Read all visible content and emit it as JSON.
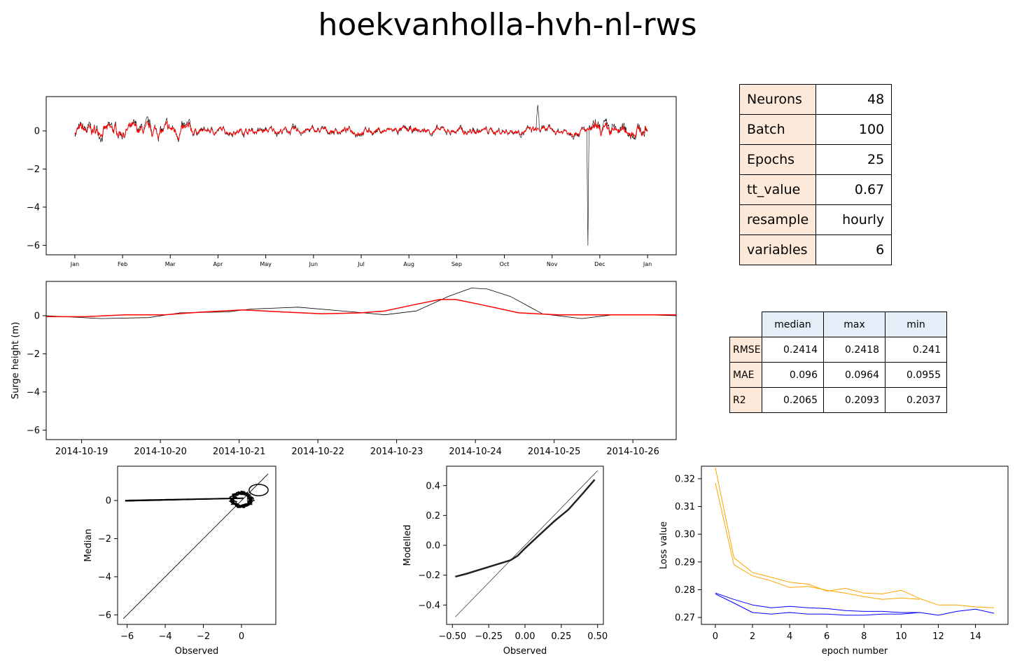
{
  "title": "hoekvanholla-hvh-nl-rws",
  "params_table": [
    {
      "key": "Neurons",
      "value": "48"
    },
    {
      "key": "Batch",
      "value": "100"
    },
    {
      "key": "Epochs",
      "value": "25"
    },
    {
      "key": "tt_value",
      "value": "0.67"
    },
    {
      "key": "resample",
      "value": "hourly"
    },
    {
      "key": "variables",
      "value": "6"
    }
  ],
  "metrics_table": {
    "columns": [
      "median",
      "max",
      "min"
    ],
    "rows": [
      {
        "name": "RMSE",
        "values": [
          "0.2414",
          "0.2418",
          "0.241"
        ]
      },
      {
        "name": "MAE",
        "values": [
          "0.096",
          "0.0964",
          "0.0955"
        ]
      },
      {
        "name": "R2",
        "values": [
          "0.2065",
          "0.2093",
          "0.2037"
        ]
      }
    ]
  },
  "chart_data": [
    {
      "id": "annual",
      "type": "line",
      "xlabel": "",
      "ylabel": "",
      "ylim": [
        -6.5,
        1.8
      ],
      "yticks": [
        0,
        -2,
        -4,
        -6
      ],
      "xticks": [
        "Jan",
        "Feb",
        "Mar",
        "Apr",
        "May",
        "Jun",
        "Jul",
        "Aug",
        "Sep",
        "Oct",
        "Nov",
        "Dec",
        "Jan"
      ],
      "colors": {
        "observed": "#000000",
        "modelled": "#ff0000"
      },
      "series": [
        {
          "values_note": "",
          "x_range_months": [
            0,
            12
          ],
          "typical_range": [
            -0.5,
            0.6
          ],
          "peaks": [
            {
              "month": 9.7,
              "value": 1.4
            },
            {
              "month": 10.75,
              "value": -6.2
            }
          ]
        },
        {
          "x_range_months": [
            0,
            12
          ],
          "typical_range": [
            -0.7,
            0.6
          ]
        }
      ]
    },
    {
      "id": "zoom",
      "type": "line",
      "xlabel": "",
      "ylabel": "Surge height (m)",
      "ylim": [
        -6.5,
        1.8
      ],
      "yticks": [
        0,
        -2,
        -4,
        -6
      ],
      "xticks": [
        "2014-10-19",
        "2014-10-20",
        "2014-10-21",
        "2014-10-22",
        "2014-10-23",
        "2014-10-24",
        "2014-10-25",
        "2014-10-26"
      ],
      "series": [
        {
          "x": [
            0,
            0.7,
            1.3,
            1.7,
            2.3,
            2.6,
            3.2,
            3.9,
            4.3,
            4.7,
            5.1,
            5.4,
            5.6,
            5.9,
            6.3,
            6.8,
            7.2,
            7.6,
            8.0,
            8.3,
            8.6
          ],
          "y": [
            0.0,
            -0.15,
            -0.1,
            0.15,
            0.2,
            0.35,
            0.45,
            0.2,
            0.05,
            0.25,
            1.0,
            1.45,
            1.4,
            1.0,
            0.1,
            -0.15,
            0.05,
            0.05,
            0.0,
            0.1,
            -0.05
          ]
        },
        {
          "x": [
            0,
            0.5,
            1.0,
            1.5,
            2.0,
            2.5,
            3.0,
            3.5,
            4.0,
            4.3,
            4.7,
            5.0,
            5.2,
            5.5,
            6.0,
            6.5,
            7.0,
            7.5,
            8.0,
            8.5,
            8.6
          ],
          "y": [
            -0.05,
            -0.05,
            0.05,
            0.05,
            0.2,
            0.3,
            0.2,
            0.1,
            0.15,
            0.25,
            0.6,
            0.85,
            0.85,
            0.6,
            0.15,
            0.05,
            0.05,
            0.05,
            0.05,
            0.05,
            0.0
          ]
        }
      ]
    },
    {
      "id": "scatter-median",
      "type": "scatter",
      "xlabel": "Observed",
      "ylabel": "Median",
      "xlim": [
        -6.5,
        1.8
      ],
      "ylim": [
        -6.5,
        1.8
      ],
      "xticks": [
        -6,
        -4,
        -2,
        0
      ],
      "yticks": [
        0,
        -2,
        -4,
        -6
      ],
      "identity_line": [
        [
          -6.2,
          -6.2
        ],
        [
          1.4,
          1.4
        ]
      ]
    },
    {
      "id": "qq",
      "type": "line",
      "xlabel": "Observed",
      "ylabel": "Modelled",
      "xlim": [
        -0.54,
        0.54
      ],
      "ylim": [
        -0.53,
        0.53
      ],
      "xticks": [
        "-0.50",
        "-0.25",
        "0.00",
        "0.25",
        "0.50"
      ],
      "yticks": [
        "-0.4",
        "-0.2",
        "0.0",
        "0.2",
        "0.4"
      ],
      "series": [
        {
          "x": [
            -0.48,
            -0.4,
            -0.3,
            -0.2,
            -0.1,
            -0.05,
            0.0,
            0.1,
            0.2,
            0.3,
            0.4,
            0.48
          ],
          "y": [
            -0.21,
            -0.19,
            -0.16,
            -0.13,
            -0.1,
            -0.07,
            -0.02,
            0.07,
            0.16,
            0.24,
            0.35,
            0.44
          ]
        }
      ],
      "identity_line": [
        [
          -0.48,
          -0.48
        ],
        [
          0.5,
          0.5
        ]
      ]
    },
    {
      "id": "loss",
      "type": "line",
      "xlabel": "epoch number",
      "ylabel": "Loss value",
      "xlim": [
        -0.75,
        15.75
      ],
      "ylim": [
        0.2675,
        0.3245
      ],
      "xticks": [
        0,
        2,
        4,
        6,
        8,
        10,
        12,
        14
      ],
      "yticks": [
        0.27,
        0.28,
        0.29,
        0.3,
        0.31,
        0.32
      ],
      "series": [
        {
          "color": "#ffa500",
          "x": [
            0,
            1,
            2,
            3,
            4,
            5,
            6,
            7,
            8,
            9,
            10,
            11,
            12,
            13,
            14,
            15
          ],
          "y": [
            0.324,
            0.2915,
            0.2862,
            0.2845,
            0.2827,
            0.282,
            0.2795,
            0.2805,
            0.2788,
            0.2785,
            0.2798,
            0.2768,
            0.2745,
            0.2745,
            0.2738,
            0.2735
          ]
        },
        {
          "color": "#ffa500",
          "x": [
            0,
            1,
            2,
            3,
            4,
            5,
            6,
            7,
            8,
            9,
            10,
            11
          ],
          "y": [
            0.3185,
            0.289,
            0.285,
            0.2832,
            0.2808,
            0.2812,
            0.2798,
            0.2788,
            0.2775,
            0.2765,
            0.277,
            0.2765
          ]
        },
        {
          "color": "#0000ff",
          "x": [
            0,
            1,
            2,
            3,
            4,
            5,
            6,
            7,
            8,
            9,
            10,
            11
          ],
          "y": [
            0.2788,
            0.2765,
            0.2745,
            0.2735,
            0.274,
            0.2735,
            0.2732,
            0.2725,
            0.2722,
            0.2722,
            0.2718,
            0.2718
          ]
        },
        {
          "color": "#0000ff",
          "x": [
            0,
            1,
            2,
            3,
            4,
            5,
            6,
            7,
            8,
            9,
            10,
            11,
            12,
            13,
            14,
            15
          ],
          "y": [
            0.2785,
            0.2752,
            0.2718,
            0.2712,
            0.2718,
            0.2712,
            0.2712,
            0.2708,
            0.2708,
            0.2712,
            0.2712,
            0.2718,
            0.2708,
            0.2722,
            0.273,
            0.2715
          ]
        }
      ]
    }
  ]
}
